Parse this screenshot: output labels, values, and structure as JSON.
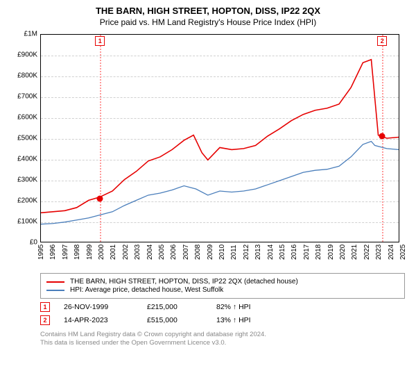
{
  "title": "THE BARN, HIGH STREET, HOPTON, DISS, IP22 2QX",
  "subtitle": "Price paid vs. HM Land Registry's House Price Index (HPI)",
  "chart": {
    "type": "line",
    "background_color": "#ffffff",
    "grid_color": "#d0d0d0",
    "border_color": "#000000",
    "font_size_axis": 10,
    "x": {
      "ticks": [
        "1995",
        "1996",
        "1997",
        "1998",
        "1999",
        "2000",
        "2001",
        "2002",
        "2003",
        "2004",
        "2005",
        "2006",
        "2007",
        "2008",
        "2009",
        "2010",
        "2011",
        "2012",
        "2013",
        "2014",
        "2015",
        "2016",
        "2017",
        "2018",
        "2019",
        "2020",
        "2021",
        "2022",
        "2023",
        "2024",
        "2025"
      ],
      "min_year": 1995,
      "max_year": 2025
    },
    "y": {
      "ticks": [
        "£0",
        "£100K",
        "£200K",
        "£300K",
        "£400K",
        "£500K",
        "£600K",
        "£700K",
        "£800K",
        "£900K",
        "£1M"
      ],
      "min": 0,
      "max": 1000000,
      "step": 100000
    },
    "series": [
      {
        "name": "THE BARN, HIGH STREET, HOPTON, DISS, IP22 2QX (detached house)",
        "color": "#e60000",
        "line_width": 1.6,
        "points": [
          [
            1995,
            140000
          ],
          [
            1996,
            145000
          ],
          [
            1997,
            150000
          ],
          [
            1998,
            165000
          ],
          [
            1999,
            200000
          ],
          [
            1999.9,
            215000
          ],
          [
            2001,
            245000
          ],
          [
            2002,
            300000
          ],
          [
            2003,
            340000
          ],
          [
            2004,
            390000
          ],
          [
            2005,
            410000
          ],
          [
            2006,
            445000
          ],
          [
            2007,
            490000
          ],
          [
            2007.8,
            515000
          ],
          [
            2008.5,
            430000
          ],
          [
            2009,
            395000
          ],
          [
            2010,
            455000
          ],
          [
            2011,
            445000
          ],
          [
            2012,
            450000
          ],
          [
            2013,
            465000
          ],
          [
            2014,
            510000
          ],
          [
            2015,
            545000
          ],
          [
            2016,
            585000
          ],
          [
            2017,
            615000
          ],
          [
            2018,
            635000
          ],
          [
            2019,
            645000
          ],
          [
            2020,
            665000
          ],
          [
            2021,
            745000
          ],
          [
            2022,
            865000
          ],
          [
            2022.7,
            880000
          ],
          [
            2023.29,
            515000
          ],
          [
            2024,
            500000
          ],
          [
            2025,
            505000
          ]
        ]
      },
      {
        "name": "HPI: Average price, detached house, West Suffolk",
        "color": "#4a7ebb",
        "line_width": 1.3,
        "points": [
          [
            1995,
            85000
          ],
          [
            1996,
            88000
          ],
          [
            1997,
            95000
          ],
          [
            1998,
            105000
          ],
          [
            1999,
            115000
          ],
          [
            2000,
            130000
          ],
          [
            2001,
            145000
          ],
          [
            2002,
            175000
          ],
          [
            2003,
            200000
          ],
          [
            2004,
            225000
          ],
          [
            2005,
            235000
          ],
          [
            2006,
            250000
          ],
          [
            2007,
            270000
          ],
          [
            2008,
            255000
          ],
          [
            2009,
            225000
          ],
          [
            2010,
            245000
          ],
          [
            2011,
            240000
          ],
          [
            2012,
            245000
          ],
          [
            2013,
            255000
          ],
          [
            2014,
            275000
          ],
          [
            2015,
            295000
          ],
          [
            2016,
            315000
          ],
          [
            2017,
            335000
          ],
          [
            2018,
            345000
          ],
          [
            2019,
            350000
          ],
          [
            2020,
            365000
          ],
          [
            2021,
            410000
          ],
          [
            2022,
            470000
          ],
          [
            2022.7,
            485000
          ],
          [
            2023,
            465000
          ],
          [
            2024,
            450000
          ],
          [
            2025,
            445000
          ]
        ]
      }
    ],
    "markers": [
      {
        "id": "1",
        "year": 1999.9,
        "value": 215000,
        "line_color": "#ff9999",
        "badge_color": "#e60000",
        "dot_color": "#e60000"
      },
      {
        "id": "2",
        "year": 2023.29,
        "value": 515000,
        "line_color": "#ff9999",
        "badge_color": "#e60000",
        "dot_color": "#e60000"
      }
    ]
  },
  "legend": {
    "items": [
      {
        "color": "#e60000",
        "label": "THE BARN, HIGH STREET, HOPTON, DISS, IP22 2QX (detached house)"
      },
      {
        "color": "#4a7ebb",
        "label": "HPI: Average price, detached house, West Suffolk"
      }
    ]
  },
  "events": [
    {
      "id": "1",
      "badge_color": "#e60000",
      "date": "26-NOV-1999",
      "price": "£215,000",
      "hpi": "82% ↑ HPI"
    },
    {
      "id": "2",
      "badge_color": "#e60000",
      "date": "14-APR-2023",
      "price": "£515,000",
      "hpi": "13% ↑ HPI"
    }
  ],
  "footer": {
    "line1": "Contains HM Land Registry data © Crown copyright and database right 2024.",
    "line2": "This data is licensed under the Open Government Licence v3.0."
  }
}
